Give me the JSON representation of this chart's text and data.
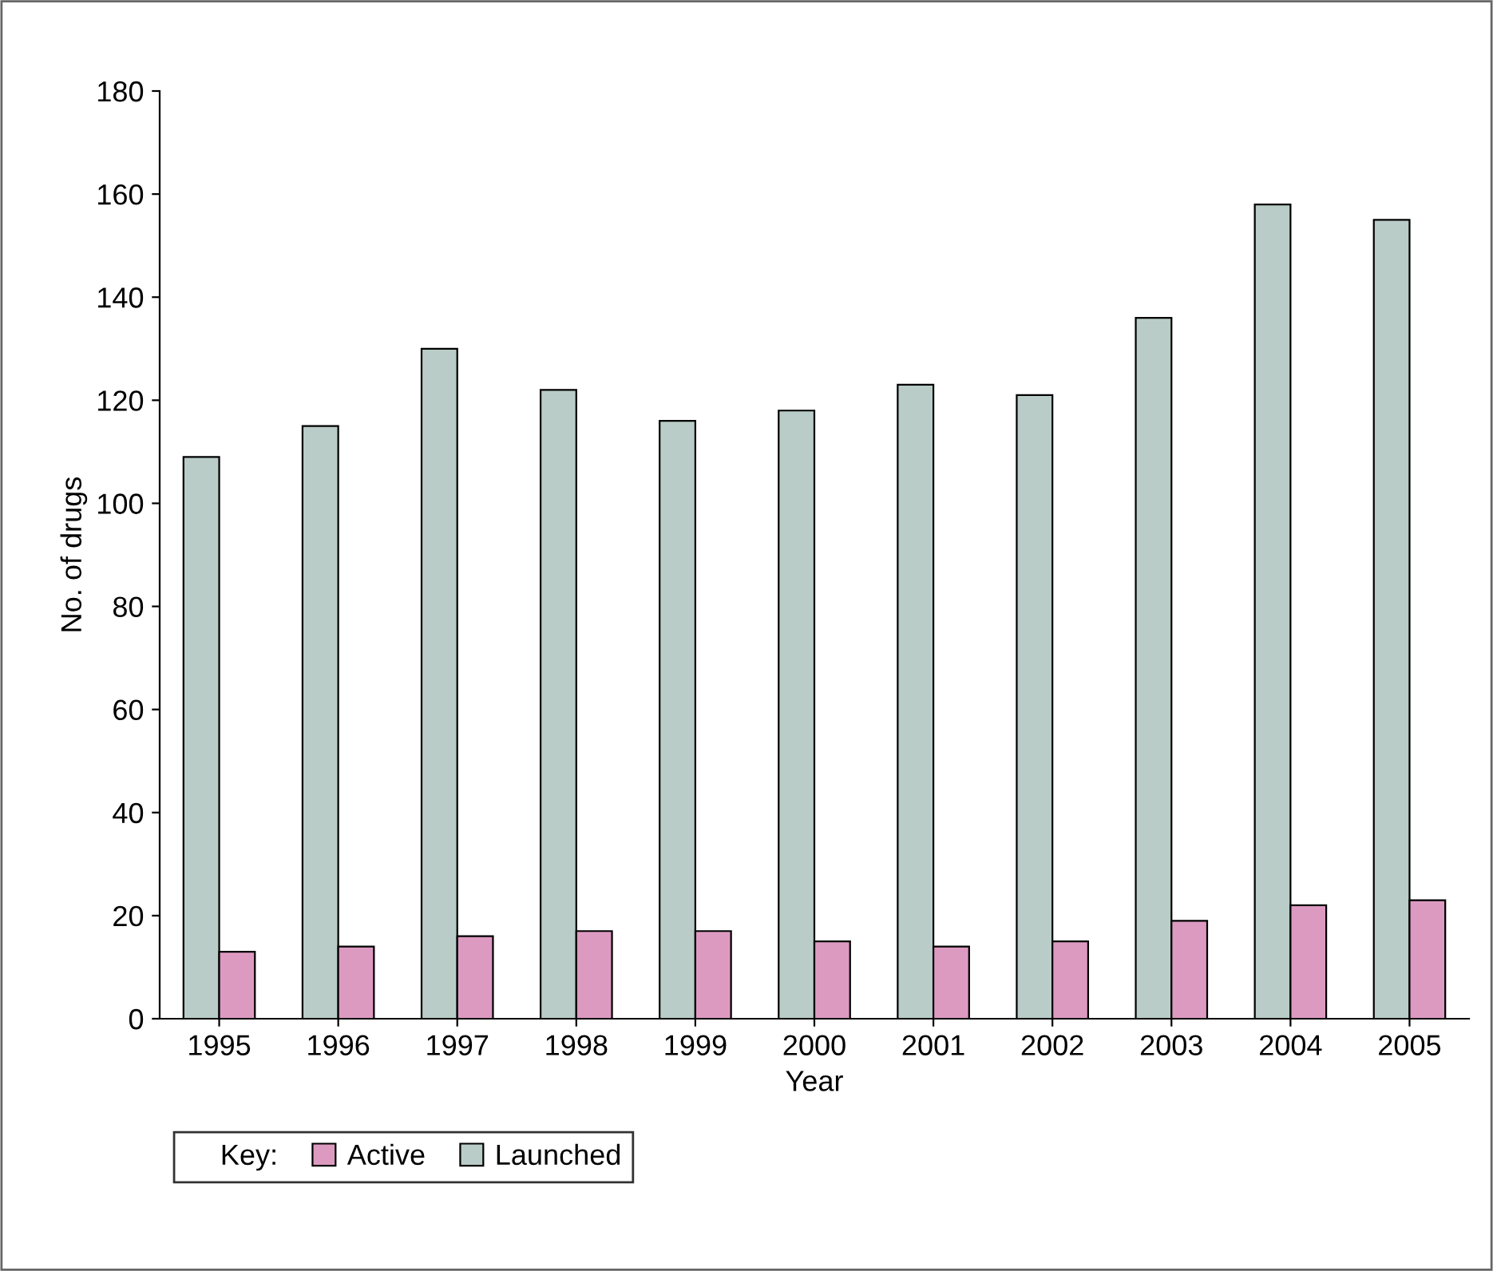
{
  "chart_data": {
    "type": "bar",
    "xlabel": "Year",
    "ylabel": "No. of drugs",
    "legend_title": "Key:",
    "categories": [
      "1995",
      "1996",
      "1997",
      "1998",
      "1999",
      "2000",
      "2001",
      "2002",
      "2003",
      "2004",
      "2005"
    ],
    "series": [
      {
        "name": "Launched",
        "color": "#b9ccc7",
        "values": [
          109,
          115,
          130,
          122,
          116,
          118,
          123,
          121,
          136,
          158,
          155
        ]
      },
      {
        "name": "Active",
        "color": "#dd9ac1",
        "values": [
          13,
          14,
          16,
          17,
          17,
          15,
          14,
          15,
          19,
          22,
          23
        ]
      }
    ],
    "ylim": [
      0,
      180
    ],
    "yticks": [
      0,
      20,
      40,
      60,
      80,
      100,
      120,
      140,
      160,
      180
    ],
    "grid": false,
    "legend": "bottom left"
  }
}
